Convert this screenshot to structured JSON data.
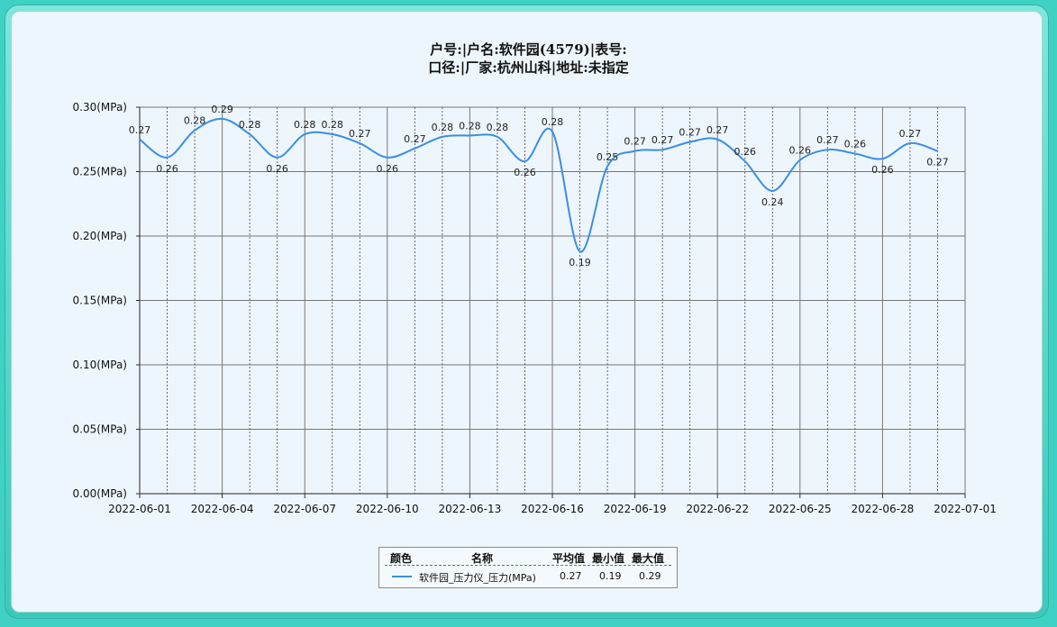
{
  "title_line1": "户号:|户名:软件园(4579)|表号:",
  "title_line2": "口径:|厂家:杭州山科|地址:未指定",
  "colors": {
    "series": "#3a8ee6",
    "grid": "#777777",
    "background": "#eef6fd"
  },
  "chart_data": {
    "type": "line",
    "smooth": true,
    "title": "户号:|户名:软件园(4579)|表号: / 口径:|厂家:杭州山科|地址:未指定",
    "xlabel": "",
    "ylabel": "",
    "ylim": [
      0,
      0.3
    ],
    "yticks": [
      0.0,
      0.05,
      0.1,
      0.15,
      0.2,
      0.25,
      0.3
    ],
    "ytick_labels": [
      "0.00(MPa)",
      "0.05(MPa)",
      "0.10(MPa)",
      "0.15(MPa)",
      "0.20(MPa)",
      "0.25(MPa)",
      "0.30(MPa)"
    ],
    "xlim": [
      "2022-06-01",
      "2022-07-01"
    ],
    "xtick_labels": [
      "2022-06-01",
      "2022-06-04",
      "2022-06-07",
      "2022-06-10",
      "2022-06-13",
      "2022-06-16",
      "2022-06-19",
      "2022-06-22",
      "2022-06-25",
      "2022-06-28",
      "2022-07-01"
    ],
    "grid": true,
    "series": [
      {
        "name": "软件园_压力仪_压力(MPa)",
        "x": [
          "2022-06-01",
          "2022-06-02",
          "2022-06-03",
          "2022-06-04",
          "2022-06-05",
          "2022-06-06",
          "2022-06-07",
          "2022-06-08",
          "2022-06-09",
          "2022-06-10",
          "2022-06-11",
          "2022-06-12",
          "2022-06-13",
          "2022-06-14",
          "2022-06-15",
          "2022-06-16",
          "2022-06-17",
          "2022-06-18",
          "2022-06-19",
          "2022-06-20",
          "2022-06-21",
          "2022-06-22",
          "2022-06-23",
          "2022-06-24",
          "2022-06-25",
          "2022-06-26",
          "2022-06-27",
          "2022-06-28",
          "2022-06-29",
          "2022-06-30"
        ],
        "values": [
          0.275,
          0.261,
          0.282,
          0.291,
          0.279,
          0.261,
          0.279,
          0.279,
          0.272,
          0.261,
          0.268,
          0.277,
          0.278,
          0.277,
          0.258,
          0.281,
          0.188,
          0.254,
          0.266,
          0.267,
          0.273,
          0.275,
          0.258,
          0.235,
          0.259,
          0.267,
          0.264,
          0.26,
          0.272,
          0.266
        ],
        "labels": [
          "0.27",
          "0.26",
          "0.28",
          "0.29",
          "0.28",
          "0.26",
          "0.28",
          "0.28",
          "0.27",
          "0.26",
          "0.27",
          "0.28",
          "0.28",
          "0.28",
          "0.26",
          "0.28",
          "0.19",
          "0.25",
          "0.27",
          "0.27",
          "0.27",
          "0.27",
          "0.26",
          "0.24",
          "0.26",
          "0.27",
          "0.26",
          "0.26",
          "0.27",
          "0.27"
        ]
      }
    ]
  },
  "legend": {
    "headers": {
      "color": "颜色",
      "name": "名称",
      "avg": "平均值",
      "min": "最小值",
      "max": "最大值"
    },
    "rows": [
      {
        "name": "软件园_压力仪_压力(MPa)",
        "avg": "0.27",
        "min": "0.19",
        "max": "0.29"
      }
    ]
  }
}
